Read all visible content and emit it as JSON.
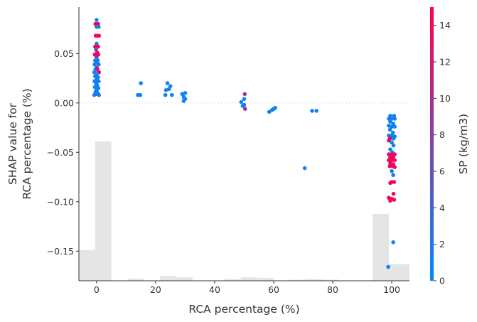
{
  "chart_data": {
    "type": "scatter",
    "title": "",
    "xlabel": "RCA percentage (%)",
    "ylabel_lines": [
      "SHAP value for",
      "RCA percentage (%)"
    ],
    "colorbar_label": "SP (kg/m3)",
    "xlim": [
      -6,
      106
    ],
    "ylim": [
      -0.18,
      0.097
    ],
    "x_ticks": [
      0,
      20,
      40,
      60,
      80,
      100
    ],
    "y_ticks": [
      -0.15,
      -0.1,
      -0.05,
      0.0,
      0.05
    ],
    "y_tick_labels": [
      "−0.15",
      "−0.10",
      "−0.05",
      "0.00",
      "0.05"
    ],
    "colorbar_range": [
      0,
      15
    ],
    "colorbar_ticks": [
      0,
      2,
      4,
      6,
      8,
      10,
      12,
      14
    ],
    "colormap": [
      "#008afb",
      "#ff0052"
    ],
    "zero_line": true,
    "histogram": {
      "bins": [
        {
          "x0": -6,
          "x1": -0.5,
          "height": 0.22
        },
        {
          "x0": -0.5,
          "x1": 5,
          "height": 1.0
        },
        {
          "x0": 10.5,
          "x1": 16,
          "height": 0.015
        },
        {
          "x0": 21.5,
          "x1": 27,
          "height": 0.035
        },
        {
          "x0": 27,
          "x1": 32.5,
          "height": 0.025
        },
        {
          "x0": 43.5,
          "x1": 49,
          "height": 0.012
        },
        {
          "x0": 49,
          "x1": 54.5,
          "height": 0.025
        },
        {
          "x0": 54.5,
          "x1": 60,
          "height": 0.02
        },
        {
          "x0": 65.5,
          "x1": 71,
          "height": 0.008
        },
        {
          "x0": 71,
          "x1": 76.5,
          "height": 0.012
        },
        {
          "x0": 76.5,
          "x1": 82,
          "height": 0.008
        },
        {
          "x0": 93.5,
          "x1": 99,
          "height": 0.48
        },
        {
          "x0": 99,
          "x1": 106,
          "height": 0.12
        }
      ]
    },
    "points": [
      [
        0,
        0.084,
        1
      ],
      [
        -0.4,
        0.08,
        14
      ],
      [
        0,
        0.08,
        14
      ],
      [
        0.5,
        0.08,
        14
      ],
      [
        0,
        0.077,
        2
      ],
      [
        0.7,
        0.077,
        1
      ],
      [
        -0.3,
        0.068,
        14
      ],
      [
        0.3,
        0.068,
        14
      ],
      [
        0.8,
        0.068,
        14
      ],
      [
        0,
        0.06,
        3
      ],
      [
        -0.5,
        0.057,
        14
      ],
      [
        0.5,
        0.057,
        14
      ],
      [
        -0.2,
        0.054,
        5
      ],
      [
        0.2,
        0.051,
        14
      ],
      [
        -0.6,
        0.049,
        14
      ],
      [
        0.6,
        0.049,
        14
      ],
      [
        0,
        0.046,
        2
      ],
      [
        -0.5,
        0.043,
        1
      ],
      [
        0.4,
        0.043,
        1
      ],
      [
        0,
        0.041,
        1
      ],
      [
        -0.7,
        0.039,
        1
      ],
      [
        0.7,
        0.039,
        2
      ],
      [
        0,
        0.036,
        1
      ],
      [
        -0.4,
        0.034,
        1
      ],
      [
        0.4,
        0.033,
        2
      ],
      [
        -0.8,
        0.031,
        1
      ],
      [
        0.8,
        0.031,
        14
      ],
      [
        0,
        0.029,
        1
      ],
      [
        -0.5,
        0.027,
        1
      ],
      [
        0.5,
        0.026,
        1
      ],
      [
        0,
        0.024,
        1
      ],
      [
        -0.7,
        0.022,
        2
      ],
      [
        0.7,
        0.022,
        1
      ],
      [
        -0.2,
        0.02,
        1
      ],
      [
        0.2,
        0.018,
        1
      ],
      [
        -0.6,
        0.016,
        1
      ],
      [
        0.6,
        0.015,
        1
      ],
      [
        0,
        0.013,
        1
      ],
      [
        -0.4,
        0.011,
        1
      ],
      [
        0.4,
        0.01,
        1
      ],
      [
        0,
        0.009,
        1
      ],
      [
        -0.8,
        0.008,
        1
      ],
      [
        0.8,
        0.008,
        2
      ],
      [
        0.2,
        0.035,
        14
      ],
      [
        -0.2,
        0.048,
        14
      ],
      [
        14,
        0.008,
        1
      ],
      [
        15,
        0.02,
        1
      ],
      [
        14.8,
        0.008,
        1
      ],
      [
        24,
        0.02,
        1
      ],
      [
        25,
        0.017,
        1
      ],
      [
        23.5,
        0.013,
        1
      ],
      [
        24.5,
        0.014,
        1
      ],
      [
        23.3,
        0.008,
        1
      ],
      [
        25.5,
        0.008,
        1
      ],
      [
        29,
        0.009,
        1
      ],
      [
        30,
        0.01,
        1
      ],
      [
        29.5,
        0.006,
        1
      ],
      [
        30,
        0.004,
        1
      ],
      [
        29.5,
        0.002,
        1
      ],
      [
        49,
        0.001,
        1
      ],
      [
        50,
        0.004,
        1
      ],
      [
        50.2,
        0.009,
        9
      ],
      [
        50,
        -0.002,
        1
      ],
      [
        49.5,
        -0.003,
        1
      ],
      [
        50.3,
        -0.006,
        9
      ],
      [
        58.5,
        -0.009,
        1
      ],
      [
        59.5,
        -0.007,
        1
      ],
      [
        60,
        -0.006,
        1
      ],
      [
        60.5,
        -0.005,
        1
      ],
      [
        73,
        -0.008,
        1
      ],
      [
        74.5,
        -0.008,
        1
      ],
      [
        70.5,
        -0.066,
        1
      ],
      [
        99.5,
        -0.013,
        1
      ],
      [
        100.8,
        -0.013,
        1
      ],
      [
        99,
        -0.016,
        1
      ],
      [
        100,
        -0.016,
        1
      ],
      [
        101,
        -0.016,
        1
      ],
      [
        99.5,
        -0.019,
        1
      ],
      [
        100.5,
        -0.021,
        1
      ],
      [
        99,
        -0.023,
        1
      ],
      [
        100,
        -0.024,
        1
      ],
      [
        101,
        -0.024,
        1
      ],
      [
        99.4,
        -0.027,
        1
      ],
      [
        100.4,
        -0.03,
        1
      ],
      [
        99,
        -0.033,
        1
      ],
      [
        100,
        -0.033,
        1
      ],
      [
        101,
        -0.034,
        1
      ],
      [
        99.4,
        -0.036,
        14
      ],
      [
        100.6,
        -0.036,
        1
      ],
      [
        99,
        -0.038,
        14
      ],
      [
        100,
        -0.04,
        1
      ],
      [
        100.6,
        -0.043,
        1
      ],
      [
        99.5,
        -0.047,
        1
      ],
      [
        100.2,
        -0.05,
        1
      ],
      [
        99,
        -0.052,
        14
      ],
      [
        100,
        -0.052,
        14
      ],
      [
        101,
        -0.052,
        14
      ],
      [
        99.5,
        -0.055,
        14
      ],
      [
        100.5,
        -0.055,
        14
      ],
      [
        99,
        -0.058,
        14
      ],
      [
        100,
        -0.058,
        14
      ],
      [
        101,
        -0.058,
        14
      ],
      [
        99.5,
        -0.061,
        14
      ],
      [
        100.5,
        -0.062,
        14
      ],
      [
        99.3,
        -0.064,
        14
      ],
      [
        100.3,
        -0.064,
        14
      ],
      [
        101,
        -0.065,
        14
      ],
      [
        100,
        -0.069,
        1
      ],
      [
        100.5,
        -0.073,
        1
      ],
      [
        100,
        -0.08,
        14
      ],
      [
        100.8,
        -0.08,
        14
      ],
      [
        99.5,
        -0.081,
        14
      ],
      [
        100.6,
        -0.092,
        14
      ],
      [
        99,
        -0.096,
        14
      ],
      [
        100,
        -0.097,
        14
      ],
      [
        100.8,
        -0.098,
        14
      ],
      [
        99.5,
        -0.099,
        14
      ],
      [
        100.5,
        -0.141,
        1
      ],
      [
        98.8,
        -0.166,
        1
      ]
    ]
  }
}
